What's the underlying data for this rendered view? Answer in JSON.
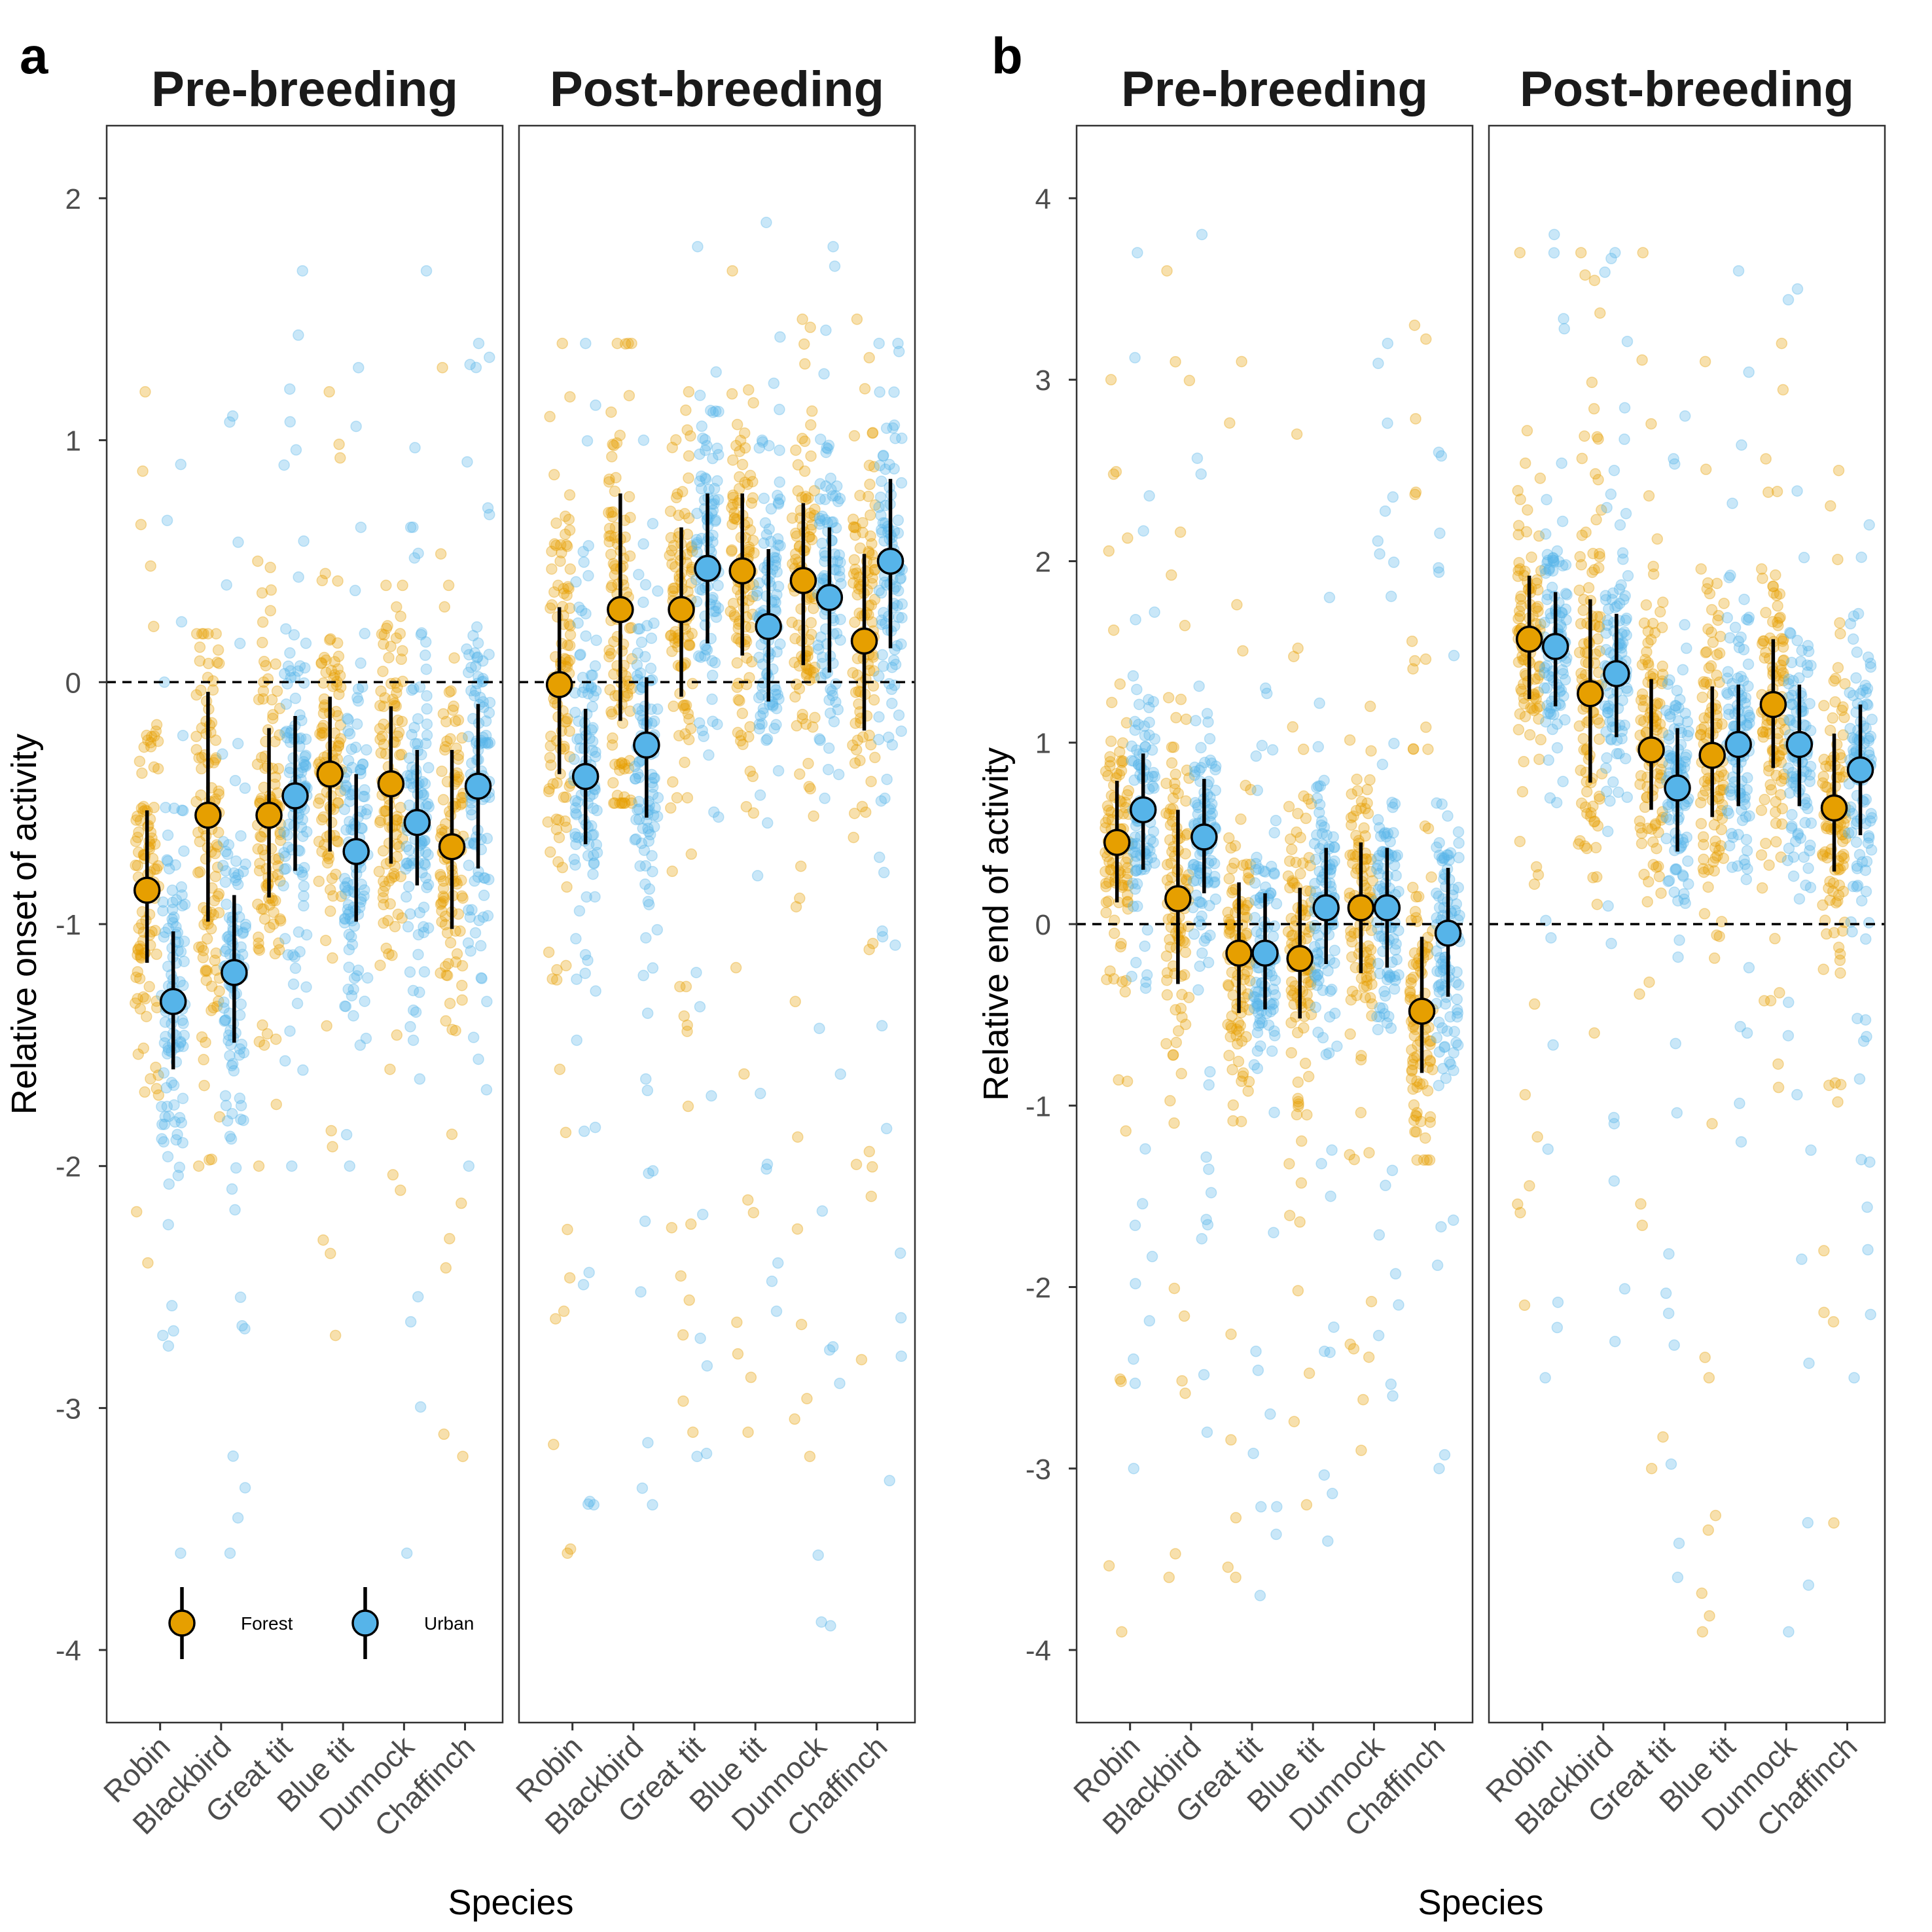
{
  "colors": {
    "forest": "#E69F00",
    "urban": "#56B4E9",
    "line": "#000000",
    "text": "#4D4D4D"
  },
  "legend": {
    "forest_label": "Forest",
    "urban_label": "Urban",
    "placement": "bottom-left of panel a, inside Pre-breeding facet"
  },
  "chart_data": [
    {
      "panel_label": "a",
      "type": "scatter",
      "ylabel": "Relative onset of activity",
      "xlabel": "Species",
      "ylim": [
        -4.3,
        2.3
      ],
      "yticks": [
        -4,
        -3,
        -2,
        -1,
        0,
        1,
        2
      ],
      "grid": false,
      "reference_line_y": 0,
      "categories": [
        "Robin",
        "Blackbird",
        "Great tit",
        "Blue tit",
        "Dunnock",
        "Chaffinch"
      ],
      "facets": [
        {
          "title": "Pre-breeding",
          "series": [
            {
              "name": "Forest",
              "mean": [
                -0.86,
                -0.55,
                -0.55,
                -0.38,
                -0.42,
                -0.68
              ],
              "lower": [
                -1.16,
                -0.99,
                -0.89,
                -0.7,
                -0.75,
                -1.02
              ],
              "upper": [
                -0.53,
                -0.04,
                -0.19,
                -0.06,
                -0.1,
                -0.28
              ],
              "spread": [
                [
                  -2.4,
                  1.2
                ],
                [
                  -2.0,
                  0.2
                ],
                [
                  -2.0,
                  0.5
                ],
                [
                  -2.7,
                  1.2
                ],
                [
                  -2.1,
                  0.4
                ],
                [
                  -3.2,
                  1.3
                ]
              ]
            },
            {
              "name": "Urban",
              "mean": [
                -1.32,
                -1.2,
                -0.47,
                -0.7,
                -0.58,
                -0.43
              ],
              "lower": [
                -1.6,
                -1.49,
                -0.78,
                -0.99,
                -0.84,
                -0.77
              ],
              "upper": [
                -1.03,
                -0.88,
                -0.14,
                -0.38,
                -0.28,
                -0.09
              ],
              "spread": [
                [
                  -3.6,
                  0.9
                ],
                [
                  -3.6,
                  1.1
                ],
                [
                  -2.0,
                  1.7
                ],
                [
                  -2.0,
                  1.3
                ],
                [
                  -3.6,
                  1.7
                ],
                [
                  -2.0,
                  1.4
                ]
              ]
            }
          ]
        },
        {
          "title": "Post-breeding",
          "series": [
            {
              "name": "Forest",
              "mean": [
                -0.01,
                0.3,
                0.3,
                0.46,
                0.42,
                0.17
              ],
              "lower": [
                -0.38,
                -0.16,
                -0.06,
                0.11,
                0.07,
                -0.2
              ],
              "upper": [
                0.31,
                0.78,
                0.64,
                0.78,
                0.74,
                0.53
              ],
              "spread": [
                [
                  -3.6,
                  1.4
                ],
                [
                  -0.5,
                  1.4
                ],
                [
                  -3.1,
                  1.2
                ],
                [
                  -3.1,
                  1.7
                ],
                [
                  -3.2,
                  1.5
                ],
                [
                  -2.8,
                  1.5
                ]
              ]
            },
            {
              "name": "Urban",
              "mean": [
                -0.39,
                -0.26,
                0.47,
                0.23,
                0.35,
                0.5
              ],
              "lower": [
                -0.67,
                -0.56,
                0.16,
                -0.08,
                0.04,
                0.14
              ],
              "upper": [
                -0.11,
                0.02,
                0.78,
                0.55,
                0.64,
                0.84
              ],
              "spread": [
                [
                  -3.4,
                  1.4
                ],
                [
                  -3.4,
                  1.0
                ],
                [
                  -3.2,
                  1.8
                ],
                [
                  -2.6,
                  1.9
                ],
                [
                  -3.9,
                  1.8
                ],
                [
                  -3.3,
                  1.4
                ]
              ]
            }
          ]
        }
      ]
    },
    {
      "panel_label": "b",
      "type": "scatter",
      "ylabel": "Relative end of activity",
      "xlabel": "Species",
      "ylim": [
        -4.4,
        4.4
      ],
      "yticks": [
        -4,
        -3,
        -2,
        -1,
        0,
        1,
        2,
        3,
        4
      ],
      "grid": false,
      "reference_line_y": 0,
      "categories": [
        "Robin",
        "Blackbird",
        "Great tit",
        "Blue tit",
        "Dunnock",
        "Chaffinch"
      ],
      "facets": [
        {
          "title": "Pre-breeding",
          "series": [
            {
              "name": "Forest",
              "mean": [
                0.45,
                0.14,
                -0.16,
                -0.19,
                0.09,
                -0.48
              ],
              "lower": [
                0.12,
                -0.33,
                -0.49,
                -0.52,
                -0.27,
                -0.82
              ],
              "upper": [
                0.79,
                0.63,
                0.23,
                0.2,
                0.45,
                -0.07
              ],
              "spread": [
                [
                  -3.9,
                  3.0
                ],
                [
                  -3.6,
                  3.6
                ],
                [
                  -3.6,
                  3.1
                ],
                [
                  -3.2,
                  2.7
                ],
                [
                  -2.9,
                  1.2
                ],
                [
                  -1.3,
                  3.3
                ]
              ]
            },
            {
              "name": "Urban",
              "mean": [
                0.63,
                0.48,
                -0.16,
                0.09,
                0.09,
                -0.05
              ],
              "lower": [
                0.3,
                0.17,
                -0.47,
                -0.22,
                -0.24,
                -0.4
              ],
              "upper": [
                0.94,
                0.8,
                0.17,
                0.42,
                0.42,
                0.31
              ],
              "spread": [
                [
                  -3.0,
                  3.7
                ],
                [
                  -2.8,
                  3.8
                ],
                [
                  -3.7,
                  1.3
                ],
                [
                  -3.4,
                  1.8
                ],
                [
                  -2.6,
                  3.2
                ],
                [
                  -3.0,
                  2.6
                ]
              ]
            }
          ]
        },
        {
          "title": "Post-breeding",
          "series": [
            {
              "name": "Forest",
              "mean": [
                1.57,
                1.27,
                0.96,
                0.93,
                1.21,
                0.64
              ],
              "lower": [
                1.24,
                0.78,
                0.63,
                0.59,
                0.86,
                0.29
              ],
              "upper": [
                1.92,
                1.79,
                1.35,
                1.31,
                1.57,
                1.05
              ],
              "spread": [
                [
                  -2.1,
                  3.7
                ],
                [
                  -0.6,
                  3.7
                ],
                [
                  -3.0,
                  3.7
                ],
                [
                  -3.9,
                  3.1
                ],
                [
                  -0.9,
                  3.2
                ],
                [
                  -3.3,
                  2.5
                ]
              ]
            },
            {
              "name": "Urban",
              "mean": [
                1.53,
                1.38,
                0.75,
                0.99,
                0.99,
                0.85
              ],
              "lower": [
                1.2,
                1.03,
                0.4,
                0.65,
                0.65,
                0.49
              ],
              "upper": [
                1.83,
                1.71,
                1.08,
                1.32,
                1.32,
                1.21
              ],
              "spread": [
                [
                  -2.5,
                  3.8
                ],
                [
                  -2.3,
                  3.7
                ],
                [
                  -3.6,
                  2.8
                ],
                [
                  -1.2,
                  3.6
                ],
                [
                  -3.9,
                  3.5
                ],
                [
                  -2.5,
                  2.2
                ]
              ]
            }
          ]
        }
      ]
    }
  ]
}
